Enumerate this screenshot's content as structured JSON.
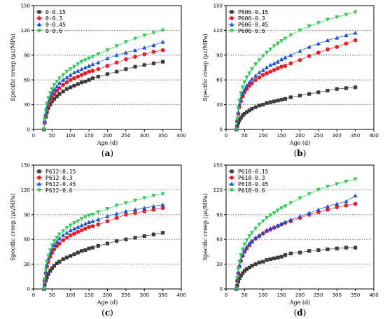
{
  "colors": {
    "s015": "#3d3d3d",
    "s03": "#e8202a",
    "s045": "#1a4fd8",
    "s06": "#2ecc55",
    "grid": "#333333"
  },
  "chart_data": [
    {
      "type": "scatter",
      "panel_label": "a",
      "xlabel": "Age  (d)",
      "ylabel": "Specific creep  (με/MPa)",
      "xlim": [
        0,
        400
      ],
      "ylim": [
        0,
        150
      ],
      "xticks": [
        "0",
        "50",
        "100",
        "150",
        "200",
        "250",
        "300",
        "350",
        "400"
      ],
      "yticks": [
        "0",
        "30",
        "60",
        "90",
        "120",
        "150"
      ],
      "grid": "horizontal dotted",
      "legend_position": "top-left",
      "series": [
        {
          "name": "0-0.15",
          "marker": "square",
          "color": "#3d3d3d",
          "x": [
            28,
            30,
            33,
            36,
            40,
            45,
            50,
            56,
            63,
            70,
            80,
            90,
            100,
            110,
            120,
            130,
            140,
            150,
            160,
            175,
            200,
            225,
            250,
            275,
            300,
            325,
            350
          ],
          "y": [
            0,
            8,
            15,
            21,
            26,
            30,
            34,
            37,
            40,
            43,
            46,
            49,
            51,
            53,
            55,
            57,
            58,
            60,
            62,
            64,
            67,
            70,
            73,
            76,
            78,
            80,
            82
          ]
        },
        {
          "name": "0-0.3",
          "marker": "circle",
          "color": "#e8202a",
          "x": [
            28,
            30,
            33,
            36,
            40,
            45,
            50,
            56,
            63,
            70,
            80,
            90,
            100,
            110,
            120,
            130,
            140,
            150,
            160,
            175,
            200,
            225,
            250,
            275,
            300,
            325,
            350
          ],
          "y": [
            0,
            9,
            17,
            24,
            30,
            35,
            39,
            43,
            47,
            50,
            54,
            57,
            60,
            62,
            64,
            66,
            68,
            70,
            71,
            73,
            77,
            81,
            85,
            88,
            91,
            94,
            96
          ]
        },
        {
          "name": "0-0.45",
          "marker": "triangle-up",
          "color": "#1a4fd8",
          "x": [
            28,
            30,
            33,
            36,
            40,
            45,
            50,
            56,
            63,
            70,
            80,
            90,
            100,
            110,
            120,
            130,
            140,
            150,
            160,
            175,
            200,
            225,
            250,
            275,
            300,
            325,
            350
          ],
          "y": [
            0,
            10,
            19,
            27,
            33,
            39,
            44,
            48,
            52,
            56,
            60,
            63,
            66,
            69,
            71,
            73,
            75,
            77,
            79,
            81,
            86,
            90,
            93,
            96,
            99,
            102,
            106
          ]
        },
        {
          "name": "0-0.6",
          "marker": "triangle-down",
          "color": "#2ecc55",
          "x": [
            28,
            30,
            33,
            36,
            40,
            45,
            50,
            56,
            63,
            70,
            80,
            90,
            100,
            110,
            120,
            130,
            140,
            150,
            160,
            175,
            200,
            225,
            250,
            275,
            300,
            325,
            350
          ],
          "y": [
            0,
            12,
            22,
            31,
            38,
            44,
            49,
            54,
            58,
            62,
            66,
            70,
            73,
            76,
            79,
            82,
            84,
            86,
            88,
            91,
            96,
            101,
            106,
            110,
            114,
            117,
            120
          ]
        }
      ]
    },
    {
      "type": "scatter",
      "panel_label": "b",
      "xlabel": "Age  (d)",
      "ylabel": "Specific creep  (με/MPa)",
      "xlim": [
        0,
        400
      ],
      "ylim": [
        0,
        150
      ],
      "xticks": [
        "0",
        "50",
        "100",
        "150",
        "200",
        "250",
        "300",
        "350",
        "400"
      ],
      "yticks": [
        "0",
        "30",
        "60",
        "90",
        "120",
        "150"
      ],
      "grid": "horizontal dotted",
      "legend_position": "top-left",
      "series": [
        {
          "name": "P606-0.15",
          "marker": "square",
          "color": "#3d3d3d",
          "x": [
            28,
            30,
            33,
            36,
            40,
            45,
            50,
            56,
            63,
            70,
            80,
            90,
            100,
            110,
            120,
            130,
            140,
            150,
            160,
            175,
            200,
            225,
            250,
            275,
            300,
            325,
            350
          ],
          "y": [
            0,
            4,
            8,
            11,
            14,
            17,
            19,
            21,
            23,
            25,
            27,
            29,
            30,
            32,
            33,
            34,
            35,
            36,
            37,
            39,
            41,
            43,
            45,
            47,
            49,
            50,
            51
          ]
        },
        {
          "name": "P606-0.3",
          "marker": "circle",
          "color": "#e8202a",
          "x": [
            28,
            30,
            33,
            36,
            40,
            45,
            50,
            56,
            63,
            70,
            80,
            90,
            100,
            110,
            120,
            130,
            140,
            150,
            160,
            175,
            200,
            225,
            250,
            275,
            300,
            325,
            350
          ],
          "y": [
            0,
            10,
            19,
            27,
            34,
            40,
            45,
            49,
            53,
            56,
            60,
            63,
            66,
            68,
            70,
            72,
            74,
            76,
            77,
            80,
            84,
            89,
            93,
            97,
            100,
            104,
            108
          ]
        },
        {
          "name": "P606-0.45",
          "marker": "triangle-up",
          "color": "#1a4fd8",
          "x": [
            28,
            30,
            33,
            36,
            40,
            45,
            50,
            56,
            63,
            70,
            80,
            90,
            100,
            110,
            120,
            130,
            140,
            150,
            160,
            175,
            200,
            225,
            250,
            275,
            300,
            325,
            350
          ],
          "y": [
            0,
            11,
            21,
            30,
            37,
            43,
            48,
            53,
            57,
            61,
            65,
            69,
            72,
            75,
            78,
            80,
            82,
            85,
            87,
            90,
            95,
            100,
            104,
            108,
            111,
            114,
            117
          ]
        },
        {
          "name": "P606-0.6",
          "marker": "triangle-down",
          "color": "#2ecc55",
          "x": [
            28,
            30,
            33,
            36,
            40,
            45,
            50,
            56,
            63,
            70,
            80,
            90,
            100,
            110,
            120,
            130,
            140,
            150,
            160,
            175,
            200,
            225,
            250,
            275,
            300,
            325,
            350
          ],
          "y": [
            0,
            13,
            25,
            35,
            44,
            51,
            57,
            63,
            68,
            73,
            79,
            84,
            89,
            93,
            97,
            101,
            104,
            107,
            110,
            114,
            120,
            125,
            129,
            133,
            136,
            139,
            142
          ]
        }
      ]
    },
    {
      "type": "scatter",
      "panel_label": "c",
      "xlabel": "Age  (d)",
      "ylabel": "Specific creep  (με/MPa)",
      "xlim": [
        0,
        400
      ],
      "ylim": [
        0,
        150
      ],
      "xticks": [
        "0",
        "50",
        "100",
        "150",
        "200",
        "250",
        "300",
        "350",
        "400"
      ],
      "yticks": [
        "0",
        "30",
        "60",
        "90",
        "120",
        "150"
      ],
      "grid": "horizontal dotted",
      "legend_position": "top-left",
      "series": [
        {
          "name": "P612-0.15",
          "marker": "square",
          "color": "#3d3d3d",
          "x": [
            28,
            30,
            33,
            36,
            40,
            45,
            50,
            56,
            63,
            70,
            80,
            90,
            100,
            110,
            120,
            130,
            140,
            150,
            160,
            175,
            200,
            225,
            250,
            275,
            300,
            325,
            350
          ],
          "y": [
            0,
            5,
            10,
            14,
            18,
            22,
            25,
            28,
            31,
            33,
            36,
            38,
            40,
            42,
            44,
            46,
            47,
            49,
            50,
            52,
            55,
            58,
            60,
            62,
            64,
            66,
            68
          ]
        },
        {
          "name": "P612-0.3",
          "marker": "circle",
          "color": "#e8202a",
          "x": [
            28,
            30,
            33,
            36,
            40,
            45,
            50,
            56,
            63,
            70,
            80,
            90,
            100,
            110,
            120,
            130,
            140,
            150,
            160,
            175,
            200,
            225,
            250,
            275,
            300,
            325,
            350
          ],
          "y": [
            0,
            10,
            19,
            27,
            33,
            39,
            44,
            48,
            52,
            55,
            59,
            62,
            65,
            67,
            69,
            71,
            73,
            75,
            76,
            78,
            82,
            86,
            90,
            92,
            94,
            96,
            98
          ]
        },
        {
          "name": "P612-0.45",
          "marker": "triangle-up",
          "color": "#1a4fd8",
          "x": [
            28,
            30,
            33,
            36,
            40,
            45,
            50,
            56,
            63,
            70,
            80,
            90,
            100,
            110,
            120,
            130,
            140,
            150,
            160,
            175,
            200,
            225,
            250,
            275,
            300,
            325,
            350
          ],
          "y": [
            0,
            11,
            21,
            30,
            37,
            43,
            48,
            53,
            57,
            61,
            65,
            68,
            71,
            73,
            75,
            77,
            79,
            81,
            82,
            84,
            88,
            91,
            94,
            96,
            98,
            100,
            102
          ]
        },
        {
          "name": "P612-0.6",
          "marker": "triangle-down",
          "color": "#2ecc55",
          "x": [
            28,
            30,
            33,
            36,
            40,
            45,
            50,
            56,
            63,
            70,
            80,
            90,
            100,
            110,
            120,
            130,
            140,
            150,
            160,
            175,
            200,
            225,
            250,
            275,
            300,
            325,
            350
          ],
          "y": [
            0,
            12,
            23,
            33,
            40,
            47,
            53,
            58,
            62,
            66,
            70,
            74,
            77,
            80,
            82,
            85,
            87,
            89,
            90,
            93,
            97,
            101,
            104,
            107,
            110,
            113,
            115
          ]
        }
      ]
    },
    {
      "type": "scatter",
      "panel_label": "d",
      "xlabel": "Age  (d)",
      "ylabel": "Specific creep  (με/MPa)",
      "xlim": [
        0,
        400
      ],
      "ylim": [
        0,
        150
      ],
      "xticks": [
        "0",
        "50",
        "100",
        "150",
        "200",
        "250",
        "300",
        "350",
        "400"
      ],
      "yticks": [
        "0",
        "30",
        "60",
        "90",
        "120",
        "150"
      ],
      "grid": "horizontal dotted",
      "legend_position": "top-left",
      "series": [
        {
          "name": "P618-0.15",
          "marker": "square",
          "color": "#3d3d3d",
          "x": [
            28,
            30,
            33,
            36,
            40,
            45,
            50,
            56,
            63,
            70,
            80,
            90,
            100,
            110,
            120,
            130,
            140,
            150,
            160,
            175,
            200,
            225,
            250,
            275,
            300,
            325,
            350
          ],
          "y": [
            0,
            4,
            9,
            13,
            16,
            19,
            22,
            24,
            26,
            28,
            30,
            32,
            33,
            35,
            36,
            37,
            38,
            39,
            41,
            43,
            44,
            46,
            47,
            48,
            49,
            50,
            50
          ]
        },
        {
          "name": "P618-0.3",
          "marker": "circle",
          "color": "#e8202a",
          "x": [
            28,
            30,
            33,
            36,
            40,
            45,
            50,
            56,
            63,
            70,
            80,
            90,
            100,
            110,
            120,
            130,
            140,
            150,
            160,
            175,
            200,
            225,
            250,
            275,
            300,
            325,
            350
          ],
          "y": [
            0,
            10,
            19,
            27,
            34,
            40,
            45,
            49,
            53,
            57,
            61,
            64,
            67,
            70,
            72,
            74,
            76,
            78,
            80,
            82,
            86,
            90,
            93,
            96,
            99,
            101,
            103
          ]
        },
        {
          "name": "P618-0.45",
          "marker": "triangle-up",
          "color": "#1a4fd8",
          "x": [
            28,
            30,
            33,
            36,
            40,
            45,
            50,
            56,
            63,
            70,
            80,
            90,
            100,
            110,
            120,
            130,
            140,
            150,
            160,
            175,
            200,
            225,
            250,
            275,
            300,
            325,
            350
          ],
          "y": [
            0,
            11,
            20,
            28,
            35,
            41,
            46,
            51,
            55,
            58,
            62,
            65,
            68,
            71,
            73,
            75,
            77,
            79,
            81,
            84,
            88,
            92,
            96,
            100,
            103,
            106,
            113
          ]
        },
        {
          "name": "P618-0.6",
          "marker": "triangle-down",
          "color": "#2ecc55",
          "x": [
            28,
            30,
            33,
            36,
            40,
            45,
            50,
            56,
            63,
            70,
            80,
            90,
            100,
            110,
            120,
            130,
            140,
            150,
            160,
            175,
            200,
            225,
            250,
            275,
            300,
            325,
            350
          ],
          "y": [
            0,
            13,
            24,
            33,
            41,
            48,
            54,
            59,
            64,
            68,
            73,
            78,
            82,
            86,
            89,
            92,
            95,
            98,
            100,
            104,
            110,
            115,
            120,
            124,
            127,
            130,
            133
          ]
        }
      ]
    }
  ]
}
